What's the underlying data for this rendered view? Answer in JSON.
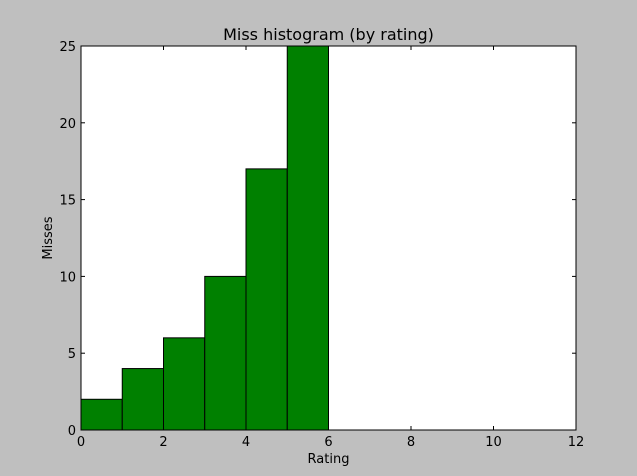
{
  "chart_data": {
    "type": "bar",
    "title": "Miss histogram (by rating)",
    "xlabel": "Rating",
    "ylabel": "Misses",
    "bins": [
      [
        0,
        1
      ],
      [
        1,
        2
      ],
      [
        2,
        3
      ],
      [
        3,
        4
      ],
      [
        4,
        5
      ],
      [
        5,
        6
      ]
    ],
    "values": [
      2,
      4,
      6,
      10,
      17,
      25
    ],
    "xlim": [
      0,
      12
    ],
    "ylim": [
      0,
      25
    ],
    "xticks": [
      0,
      2,
      4,
      6,
      8,
      10,
      12
    ],
    "yticks": [
      0,
      5,
      10,
      15,
      20,
      25
    ],
    "grid": false,
    "bar_color": "#008000",
    "edge_color": "#000000",
    "background": "#bfbfbf",
    "plot_background": "#ffffff"
  }
}
